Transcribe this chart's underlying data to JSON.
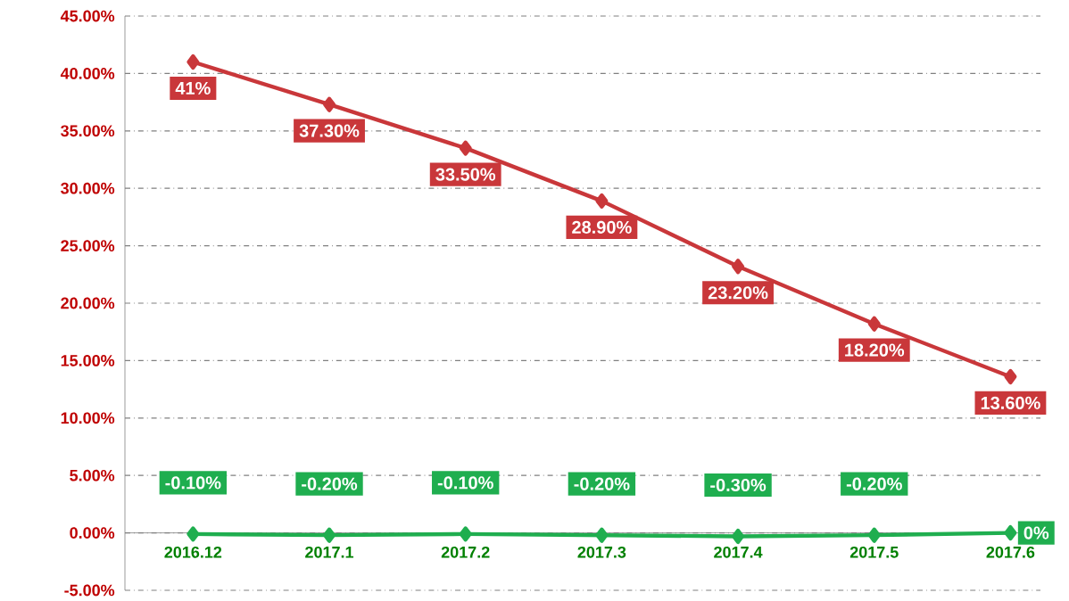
{
  "chart_data": {
    "type": "line",
    "categories": [
      "2016.12",
      "2017.1",
      "2017.2",
      "2017.3",
      "2017.4",
      "2017.5",
      "2017.6"
    ],
    "series": [
      {
        "color": "#c9373a",
        "values": [
          41,
          37.3,
          33.5,
          28.9,
          23.2,
          18.2,
          13.6
        ],
        "value_labels": [
          "41%",
          "37.30%",
          "33.50%",
          "28.90%",
          "23.20%",
          "18.20%",
          "13.60%"
        ]
      },
      {
        "color": "#1fae4f",
        "values": [
          -0.1,
          -0.2,
          -0.1,
          -0.2,
          -0.3,
          -0.2,
          0
        ],
        "value_labels": [
          "-0.10%",
          "-0.20%",
          "-0.10%",
          "-0.20%",
          "-0.30%",
          "-0.20%",
          "0%"
        ]
      }
    ],
    "ylim": [
      -5,
      45
    ],
    "yticks": [
      {
        "value": -5,
        "label": "-5.00%"
      },
      {
        "value": 0,
        "label": "0.00%"
      },
      {
        "value": 5,
        "label": "5.00%"
      },
      {
        "value": 10,
        "label": "10.00%"
      },
      {
        "value": 15,
        "label": "15.00%"
      },
      {
        "value": 20,
        "label": "20.00%"
      },
      {
        "value": 25,
        "label": "25.00%"
      },
      {
        "value": 30,
        "label": "30.00%"
      },
      {
        "value": 35,
        "label": "35.00%"
      },
      {
        "value": 40,
        "label": "40.00%"
      },
      {
        "value": 45,
        "label": "45.00%"
      }
    ],
    "grid": "y",
    "marker": "diamond"
  }
}
